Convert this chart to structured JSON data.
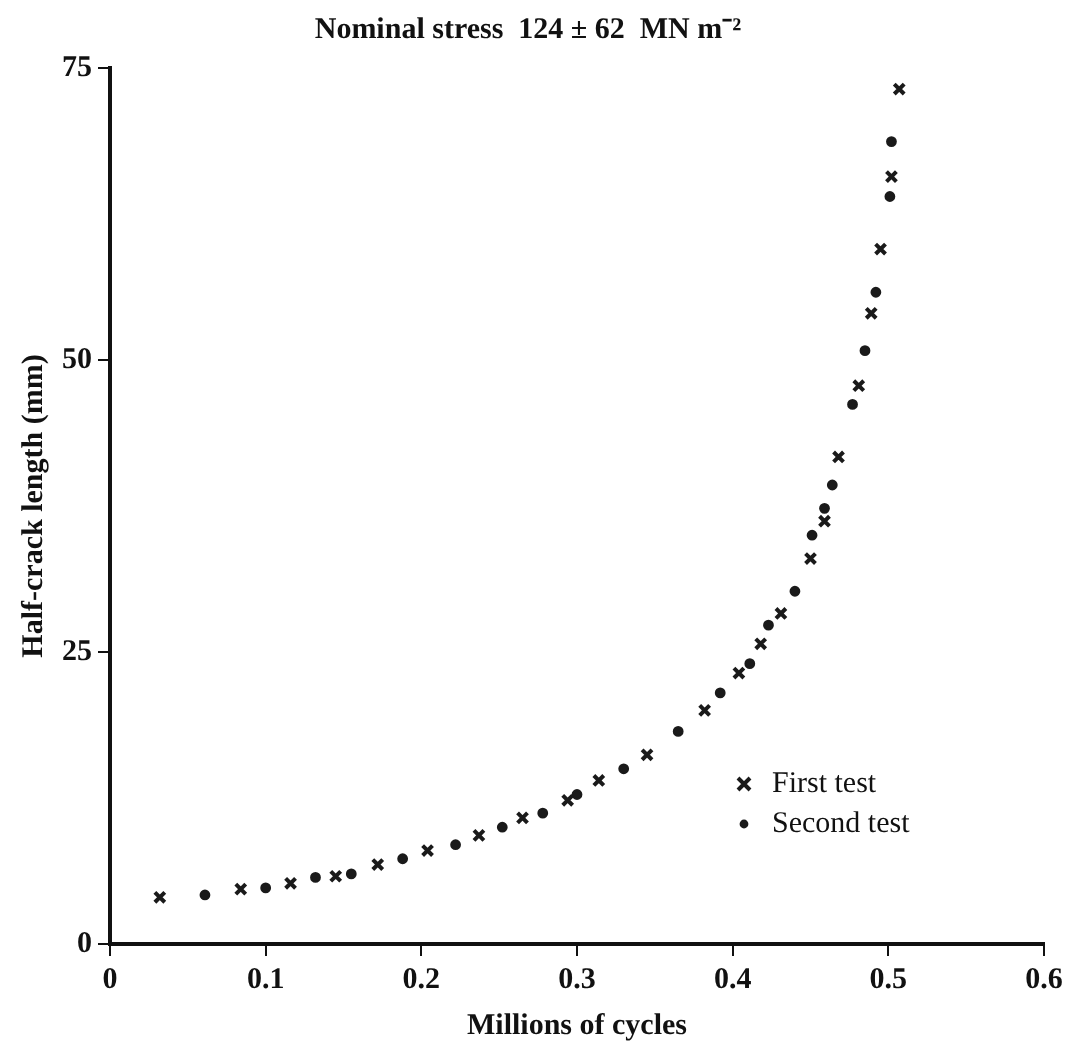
{
  "chart_data": {
    "type": "scatter",
    "title": "Nominal stress  124 ± 62  MN m⁻²",
    "xlabel": "Millions of cycles",
    "ylabel": "Half-crack length (mm)",
    "xlim": [
      0,
      0.6
    ],
    "xticks": [
      0,
      0.1,
      0.2,
      0.3,
      0.4,
      0.5,
      0.6
    ],
    "ylim": [
      0,
      75
    ],
    "yticks": [
      0,
      25,
      50,
      75
    ],
    "grid": false,
    "legend": "bottom right",
    "series": [
      {
        "name": "First test",
        "color": "#1a1a1a",
        "marker": "cross",
        "x": [
          0.032,
          0.084,
          0.116,
          0.145,
          0.172,
          0.204,
          0.237,
          0.265,
          0.294,
          0.314,
          0.345,
          0.382,
          0.404,
          0.418,
          0.431,
          0.45,
          0.459,
          0.468,
          0.481,
          0.489,
          0.495,
          0.502,
          0.507
        ],
        "values": [
          4,
          4.7,
          5.2,
          5.8,
          6.8,
          8,
          9.3,
          10.8,
          12.3,
          14,
          16.2,
          20,
          23.2,
          25.7,
          28.3,
          33,
          36.2,
          41.7,
          47.8,
          54,
          59.5,
          65.7,
          73.2
        ]
      },
      {
        "name": "Second test",
        "color": "#1a1a1a",
        "marker": "circle",
        "x": [
          0.061,
          0.1,
          0.132,
          0.155,
          0.188,
          0.222,
          0.252,
          0.278,
          0.3,
          0.33,
          0.365,
          0.392,
          0.411,
          0.423,
          0.44,
          0.451,
          0.459,
          0.464,
          0.477,
          0.485,
          0.492,
          0.501,
          0.502
        ],
        "values": [
          4.2,
          4.8,
          5.7,
          6,
          7.3,
          8.5,
          10,
          11.2,
          12.8,
          15,
          18.2,
          21.5,
          24,
          27.3,
          30.2,
          35,
          37.3,
          39.3,
          46.2,
          50.8,
          55.8,
          64,
          68.7
        ]
      }
    ]
  }
}
